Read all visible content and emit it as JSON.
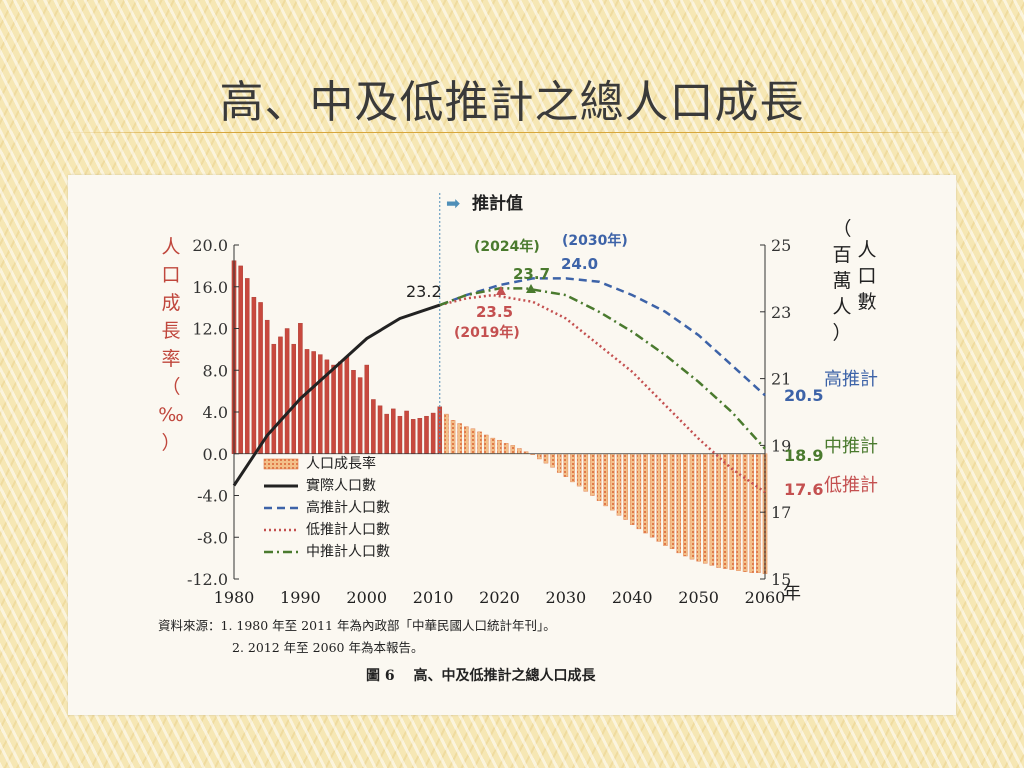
{
  "slide": {
    "title": "高、中及低推計之總人口成長"
  },
  "chart_data": {
    "type": "bar+line",
    "header": "推計值",
    "left_axis": {
      "label_chars": [
        "人",
        "口",
        "成",
        "長",
        "率",
        "（",
        "‰",
        "）"
      ],
      "range": [
        -12.0,
        20.0
      ],
      "ticks": [
        20.0,
        16.0,
        12.0,
        8.0,
        4.0,
        0.0,
        -4.0,
        -8.0,
        -12.0
      ],
      "tick_labels": [
        "20.0",
        "16.0",
        "12.0",
        "8.0",
        "4.0",
        "0.0",
        "-4.0",
        "-8.0",
        "-12.0"
      ]
    },
    "right_axis": {
      "label_col1": [
        "（",
        "百",
        "萬",
        "人",
        "）"
      ],
      "label_col2": [
        "人",
        "口",
        "數"
      ],
      "range": [
        15,
        25
      ],
      "ticks": [
        25,
        23,
        21,
        19,
        17,
        15
      ],
      "tick_labels": [
        "25",
        "23",
        "21",
        "19",
        "17",
        "15"
      ]
    },
    "x_axis": {
      "range": [
        1980,
        2060
      ],
      "ticks": [
        1980,
        1990,
        2000,
        2010,
        2020,
        2030,
        2040,
        2050,
        2060
      ],
      "tick_labels": [
        "1980",
        "1990",
        "2000",
        "2010",
        "2020",
        "2030",
        "2040",
        "2050",
        "2060"
      ],
      "unit": "年"
    },
    "growth_rate": {
      "name": "人口成長率",
      "years": [
        1980,
        1981,
        1982,
        1983,
        1984,
        1985,
        1986,
        1987,
        1988,
        1989,
        1990,
        1991,
        1992,
        1993,
        1994,
        1995,
        1996,
        1997,
        1998,
        1999,
        2000,
        2001,
        2002,
        2003,
        2004,
        2005,
        2006,
        2007,
        2008,
        2009,
        2010,
        2011,
        2012,
        2013,
        2014,
        2015,
        2016,
        2017,
        2018,
        2019,
        2020,
        2021,
        2022,
        2023,
        2024,
        2025,
        2026,
        2027,
        2028,
        2029,
        2030,
        2031,
        2032,
        2033,
        2034,
        2035,
        2036,
        2037,
        2038,
        2039,
        2040,
        2041,
        2042,
        2043,
        2044,
        2045,
        2046,
        2047,
        2048,
        2049,
        2050,
        2051,
        2052,
        2053,
        2054,
        2055,
        2056,
        2057,
        2058,
        2059,
        2060
      ],
      "values": [
        18.5,
        18.0,
        16.8,
        15.0,
        14.5,
        12.8,
        10.5,
        11.2,
        12.0,
        10.5,
        12.5,
        10.0,
        9.8,
        9.5,
        9.0,
        8.5,
        8.8,
        9.3,
        8.0,
        7.3,
        8.5,
        5.2,
        4.6,
        3.8,
        4.3,
        3.6,
        4.1,
        3.3,
        3.4,
        3.6,
        3.9,
        4.5,
        3.8,
        3.2,
        2.9,
        2.6,
        2.4,
        2.1,
        1.8,
        1.5,
        1.3,
        1.0,
        0.8,
        0.5,
        0.2,
        -0.1,
        -0.5,
        -0.9,
        -1.3,
        -1.8,
        -2.2,
        -2.7,
        -3.1,
        -3.6,
        -4.0,
        -4.5,
        -5.0,
        -5.4,
        -5.9,
        -6.3,
        -6.8,
        -7.2,
        -7.6,
        -8.0,
        -8.4,
        -8.8,
        -9.1,
        -9.5,
        -9.8,
        -10.1,
        -10.3,
        -10.5,
        -10.7,
        -10.9,
        -11.0,
        -11.1,
        -11.2,
        -11.3,
        -11.4,
        -11.4,
        -11.5
      ]
    },
    "series": [
      {
        "name": "實際人口數",
        "style": "solid",
        "color": "#222222",
        "x": [
          1980,
          1985,
          1990,
          1995,
          2000,
          2005,
          2011
        ],
        "y": [
          17.8,
          19.3,
          20.4,
          21.3,
          22.2,
          22.8,
          23.2
        ]
      },
      {
        "name": "高推計人口數",
        "style": "dashed",
        "color": "#3d63a8",
        "x": [
          2011,
          2015,
          2020,
          2025,
          2030,
          2035,
          2040,
          2045,
          2050,
          2055,
          2060
        ],
        "y": [
          23.2,
          23.5,
          23.8,
          24.0,
          24.0,
          23.9,
          23.5,
          23.0,
          22.3,
          21.4,
          20.5
        ]
      },
      {
        "name": "低推計人口數",
        "style": "dotted",
        "color": "#c45050",
        "x": [
          2011,
          2015,
          2019,
          2025,
          2030,
          2035,
          2040,
          2045,
          2050,
          2055,
          2060
        ],
        "y": [
          23.2,
          23.4,
          23.5,
          23.3,
          22.8,
          22.0,
          21.2,
          20.2,
          19.2,
          18.3,
          17.6
        ]
      },
      {
        "name": "中推計人口數",
        "style": "dashdot",
        "color": "#4a7a2e",
        "x": [
          2011,
          2015,
          2020,
          2024,
          2030,
          2035,
          2040,
          2045,
          2050,
          2055,
          2060
        ],
        "y": [
          23.2,
          23.5,
          23.7,
          23.7,
          23.5,
          23.0,
          22.4,
          21.7,
          20.9,
          20.0,
          18.9
        ]
      }
    ],
    "annotations": {
      "actual_end": "23.2",
      "high_peak": "24.0",
      "high_peak_year": "(2030年)",
      "mid_peak": "23.7",
      "mid_peak_year": "(2024年)",
      "low_peak": "23.5",
      "low_peak_year": "(2019年)",
      "high_end_value": "20.5",
      "high_end_label": "高推計",
      "mid_end_value": "18.9",
      "mid_end_label": "中推計",
      "low_end_value": "17.6",
      "low_end_label": "低推計"
    },
    "colors": {
      "bar_fill": "#c8493e",
      "bar_fill_projected": "#e07a4a",
      "high": "#3d63a8",
      "mid": "#4a7a2e",
      "low": "#c45050",
      "actual": "#222222",
      "divider": "#4f8fb8"
    }
  },
  "source_note": {
    "line1": "資料來源：1. 1980 年至 2011 年為內政部「中華民國人口統計年刊」。",
    "line2": "2. 2012 年至 2060 年為本報告。"
  },
  "figure_caption": "圖 6　 高、中及低推計之總人口成長"
}
